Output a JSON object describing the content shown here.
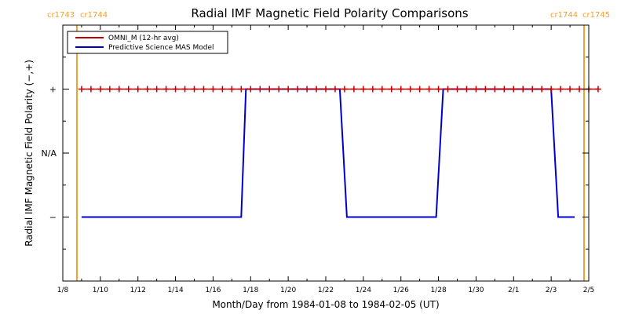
{
  "chart_data": {
    "type": "line",
    "title": "Radial IMF Magnetic Field Polarity Comparisons",
    "xlabel": "Month/Day from 1984-01-08 to 1984-02-05 (UT)",
    "ylabel": "Radial IMF Magnetic Field Polarity (−,+)",
    "x_range": [
      "1984-01-08",
      "1984-02-05"
    ],
    "xticks": [
      {
        "date": "1984-01-08",
        "label": "1/8"
      },
      {
        "date": "1984-01-10",
        "label": "1/10"
      },
      {
        "date": "1984-01-12",
        "label": "1/12"
      },
      {
        "date": "1984-01-14",
        "label": "1/14"
      },
      {
        "date": "1984-01-16",
        "label": "1/16"
      },
      {
        "date": "1984-01-18",
        "label": "1/18"
      },
      {
        "date": "1984-01-20",
        "label": "1/20"
      },
      {
        "date": "1984-01-22",
        "label": "1/22"
      },
      {
        "date": "1984-01-24",
        "label": "1/24"
      },
      {
        "date": "1984-01-26",
        "label": "1/26"
      },
      {
        "date": "1984-01-28",
        "label": "1/28"
      },
      {
        "date": "1984-01-30",
        "label": "1/30"
      },
      {
        "date": "1984-02-01",
        "label": "2/1"
      },
      {
        "date": "1984-02-03",
        "label": "2/3"
      },
      {
        "date": "1984-02-05",
        "label": "2/5"
      }
    ],
    "y_categories": [
      {
        "value": 1,
        "label": "+"
      },
      {
        "value": 0,
        "label": "N/A"
      },
      {
        "value": -1,
        "label": "−"
      }
    ],
    "ylim": [
      -2,
      2
    ],
    "legend": {
      "position": "top-left",
      "entries": [
        {
          "label": "OMNI_M (12-hr avg)",
          "color": "#c00000"
        },
        {
          "label": "Predictive Science MAS Model",
          "color": "#0000cc"
        }
      ]
    },
    "series": [
      {
        "name": "OMNI_M (12-hr avg)",
        "color": "#c00000",
        "style": "line+markers",
        "start": "1984-01-09T00:00",
        "step_hours": 12,
        "count": 56,
        "values": 1
      },
      {
        "name": "Predictive Science MAS Model",
        "color": "#0000cc",
        "style": "line",
        "points": [
          {
            "x": "1984-01-09T00:00",
            "y": -1
          },
          {
            "x": "1984-01-17T12:00",
            "y": -1
          },
          {
            "x": "1984-01-17T18:00",
            "y": 1
          },
          {
            "x": "1984-01-22T18:00",
            "y": 1
          },
          {
            "x": "1984-01-23T03:00",
            "y": -1
          },
          {
            "x": "1984-01-27T21:00",
            "y": -1
          },
          {
            "x": "1984-01-28T06:00",
            "y": 1
          },
          {
            "x": "1984-02-03T00:00",
            "y": 1
          },
          {
            "x": "1984-02-03T09:00",
            "y": -1
          },
          {
            "x": "1984-02-04T06:00",
            "y": -1
          }
        ]
      }
    ],
    "carrington_markers": [
      {
        "date": "1984-01-08T18:00",
        "left_label": "cr1743",
        "right_label": "cr1744"
      },
      {
        "date": "1984-02-04T18:00",
        "left_label": "cr1744",
        "right_label": "cr1745"
      }
    ],
    "colors": {
      "axes": "#000000",
      "rotation_line": "#f0a030",
      "rotation_label": "#f0a030"
    }
  }
}
